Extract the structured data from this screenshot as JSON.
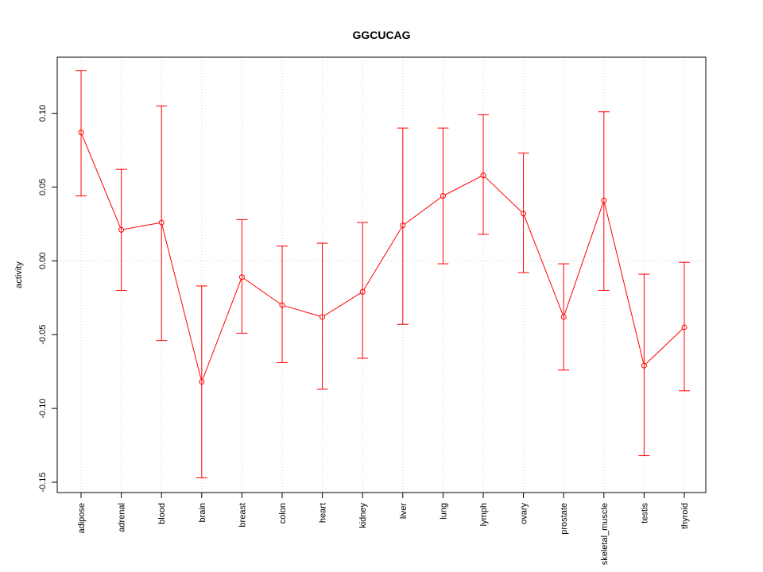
{
  "chart_data": {
    "type": "line",
    "title": "GGCUCAG",
    "xlabel": "",
    "ylabel": "activity",
    "ylim": [
      -0.157,
      0.138
    ],
    "yticks": [
      -0.15,
      -0.1,
      -0.05,
      0.0,
      0.05,
      0.1
    ],
    "ytick_labels": [
      "-0.15",
      "-0.10",
      "-0.05",
      "0.00",
      "0.05",
      "0.10"
    ],
    "grid": true,
    "categories": [
      "adipose",
      "adrenal",
      "blood",
      "brain",
      "breast",
      "colon",
      "heart",
      "kidney",
      "liver",
      "lung",
      "lymph",
      "ovary",
      "prostate",
      "skeletal_muscle",
      "testis",
      "thyroid"
    ],
    "series": [
      {
        "name": "activity",
        "color": "#ff0000",
        "values": [
          0.087,
          0.021,
          0.026,
          -0.082,
          -0.011,
          -0.03,
          -0.038,
          -0.021,
          0.024,
          0.044,
          0.058,
          0.032,
          -0.038,
          0.041,
          -0.071,
          -0.045
        ],
        "lower": [
          0.044,
          -0.02,
          -0.054,
          -0.147,
          -0.049,
          -0.069,
          -0.087,
          -0.066,
          -0.043,
          -0.002,
          0.018,
          -0.008,
          -0.074,
          -0.02,
          -0.132,
          -0.088
        ],
        "upper": [
          0.129,
          0.062,
          0.105,
          -0.017,
          0.028,
          0.01,
          0.012,
          0.026,
          0.09,
          0.09,
          0.099,
          0.073,
          -0.002,
          0.101,
          -0.009,
          -0.001
        ]
      }
    ]
  }
}
